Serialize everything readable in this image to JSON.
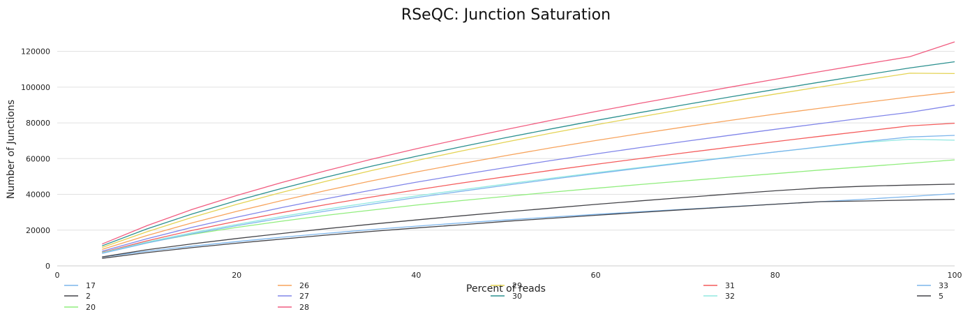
{
  "chart_data": {
    "type": "line",
    "title": "RSeQC: Junction Saturation",
    "xlabel": "Percent of reads",
    "ylabel": "Number of Junctions",
    "xlim": [
      0,
      100
    ],
    "ylim": [
      0,
      130000
    ],
    "xticks": [
      0,
      20,
      40,
      60,
      80,
      100
    ],
    "yticks": [
      0,
      20000,
      40000,
      60000,
      80000,
      100000,
      120000
    ],
    "grid": "horizontal",
    "legend_position": "bottom",
    "x": [
      5,
      10,
      15,
      20,
      25,
      30,
      35,
      40,
      45,
      50,
      55,
      60,
      65,
      70,
      75,
      80,
      85,
      90,
      95,
      100
    ],
    "series": [
      {
        "name": "17",
        "color": "#7cb5ec",
        "values": [
          4900,
          8200,
          11000,
          13600,
          16000,
          18200,
          20300,
          22200,
          24000,
          25700,
          27300,
          28800,
          30300,
          31700,
          33100,
          34500,
          35900,
          37300,
          38800,
          40400
        ]
      },
      {
        "name": "2",
        "color": "#434348",
        "values": [
          4200,
          7400,
          10200,
          12700,
          15000,
          17200,
          19300,
          21200,
          23000,
          24900,
          26600,
          28300,
          29900,
          31500,
          33000,
          34500,
          35900,
          36300,
          36800,
          37200
        ]
      },
      {
        "name": "20",
        "color": "#90ed7d",
        "values": [
          7700,
          13000,
          17600,
          21500,
          25000,
          28300,
          31200,
          34000,
          36500,
          38900,
          41200,
          43400,
          45500,
          47600,
          49600,
          51600,
          53600,
          55500,
          57400,
          59300
        ]
      },
      {
        "name": "26",
        "color": "#f7a35c",
        "values": [
          9200,
          17000,
          24000,
          30500,
          36500,
          42200,
          47500,
          52500,
          57200,
          61700,
          66000,
          70100,
          74000,
          77800,
          81400,
          84900,
          88200,
          91400,
          94500,
          97300
        ]
      },
      {
        "name": "27",
        "color": "#8085e9",
        "values": [
          8200,
          15200,
          21500,
          27200,
          32600,
          37600,
          42300,
          46800,
          51000,
          55000,
          58900,
          62600,
          66200,
          69700,
          73100,
          76400,
          79600,
          82800,
          85900,
          89900
        ]
      },
      {
        "name": "28",
        "color": "#f15c80",
        "values": [
          12200,
          22500,
          31500,
          39400,
          46600,
          53300,
          59600,
          65500,
          71000,
          76300,
          81400,
          86300,
          91000,
          95500,
          100000,
          104400,
          108700,
          112900,
          117000,
          125300
        ]
      },
      {
        "name": "29",
        "color": "#e4d354",
        "values": [
          10300,
          19100,
          27100,
          34400,
          41100,
          47400,
          53300,
          58900,
          64200,
          69300,
          74200,
          78900,
          83400,
          87800,
          92000,
          96100,
          100100,
          104000,
          107800,
          107600
        ]
      },
      {
        "name": "30",
        "color": "#2b908f",
        "values": [
          11200,
          20700,
          29000,
          36500,
          43300,
          49700,
          55700,
          61300,
          66600,
          71700,
          76600,
          81300,
          85800,
          90200,
          94500,
          98700,
          102800,
          106800,
          110700,
          114200
        ]
      },
      {
        "name": "31",
        "color": "#f45b5b",
        "values": [
          7500,
          14000,
          19800,
          25000,
          29800,
          34300,
          38500,
          42500,
          46300,
          49900,
          53400,
          56800,
          60100,
          63300,
          66400,
          69500,
          72500,
          75400,
          78300,
          79800
        ]
      },
      {
        "name": "32",
        "color": "#91e8e1",
        "values": [
          7300,
          13300,
          18500,
          23200,
          27600,
          31700,
          35500,
          39100,
          42500,
          45800,
          49000,
          52100,
          55100,
          58000,
          60900,
          63700,
          66400,
          69100,
          70800,
          70300
        ]
      },
      {
        "name": "33",
        "color": "#7cb5ec",
        "values": [
          7000,
          12800,
          17900,
          22500,
          26700,
          30700,
          34500,
          38200,
          41700,
          45100,
          48400,
          51600,
          54700,
          57700,
          60700,
          63700,
          66600,
          69500,
          72100,
          73000
        ]
      },
      {
        "name": "5",
        "color": "#434348",
        "values": [
          5000,
          9000,
          12300,
          15300,
          18100,
          20800,
          23300,
          25700,
          28000,
          30200,
          32300,
          34400,
          36400,
          38300,
          40200,
          42000,
          43600,
          44600,
          45200,
          45700
        ]
      }
    ]
  }
}
